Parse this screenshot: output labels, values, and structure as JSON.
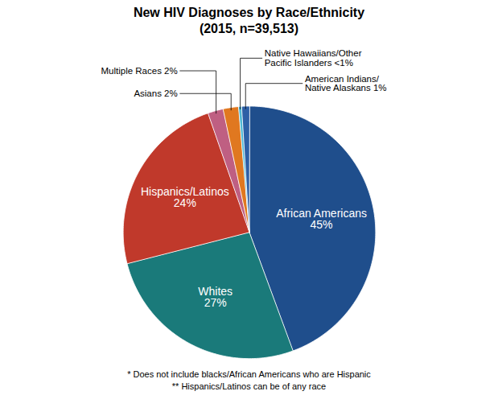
{
  "chart_data": {
    "type": "pie",
    "title": "New HIV Diagnoses by Race/Ethnicity\n(2015, n=39,513)",
    "categories": [
      "African Americans\n45%",
      "Whites\n27%",
      "Hispanics/Latinos\n24%",
      "Multiple Races 2%",
      "Asians 2%",
      "Native Hawaiians/Other\nPacific Islanders <1%",
      "American Indians/\nNative Alaskans 1%"
    ],
    "values": [
      45,
      27,
      24,
      2,
      2,
      0.4,
      1
    ],
    "colors": [
      "#1f4e8c",
      "#1a7a7a",
      "#c0392b",
      "#bf5f82",
      "#e07820",
      "#4db8d4",
      "#2d5fa6"
    ],
    "notes": [
      "* Does not include blacks/African Americans who are Hispanic",
      "** Hispanics/Latinos can be of any race"
    ]
  }
}
